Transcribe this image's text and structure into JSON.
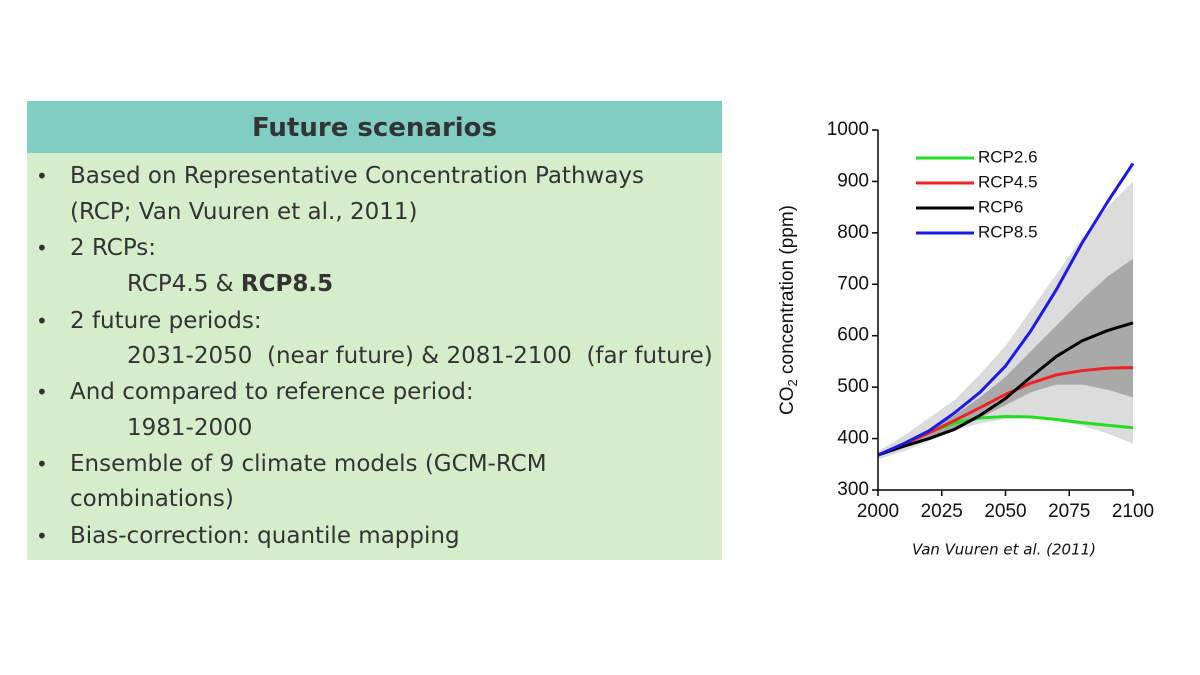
{
  "panel": {
    "title": "Future scenarios",
    "lines": [
      "Based on Representative Concentration Pathways",
      "(RCP; Van Vuuren et al., 2011)",
      "2 RCPs:",
      "RCP4.5 & ",
      "RCP8.5",
      "2 future periods:",
      "2031-2050  (near future) & 2081-2100  (far future)",
      "And compared to reference period:",
      "1981-2000",
      "Ensemble of 9 climate models (GCM-RCM",
      "combinations)",
      "Bias-correction: quantile mapping"
    ]
  },
  "chart_data": {
    "type": "line",
    "ylabel": {
      "main": "CO",
      "sub": "2",
      "rest": " concentration (ppm)"
    },
    "caption": "Van Vuuren et al. (2011)",
    "x": [
      2000,
      2010,
      2020,
      2030,
      2040,
      2050,
      2060,
      2070,
      2080,
      2090,
      2100
    ],
    "xlim": [
      2000,
      2100
    ],
    "xticks": [
      2000,
      2025,
      2050,
      2075,
      2100
    ],
    "ylim": [
      300,
      1000
    ],
    "yticks": [
      300,
      400,
      500,
      600,
      700,
      800,
      900,
      1000
    ],
    "legend": "upper-left",
    "bands": [
      {
        "color": "#dcdcdc",
        "lower": [
          360,
          375,
          395,
          415,
          430,
          438,
          440,
          435,
          425,
          410,
          390
        ],
        "upper": [
          375,
          405,
          440,
          475,
          525,
          580,
          650,
          720,
          790,
          850,
          900
        ]
      },
      {
        "color": "#a9a9a9",
        "lower": [
          365,
          382,
          398,
          415,
          440,
          465,
          490,
          505,
          505,
          495,
          480
        ],
        "upper": [
          370,
          392,
          418,
          445,
          480,
          520,
          570,
          620,
          670,
          715,
          750
        ]
      }
    ],
    "series": [
      {
        "name": "RCP2.6",
        "color": "#22dd22",
        "values": [
          368,
          389,
          412,
          430,
          440,
          443,
          442,
          437,
          431,
          426,
          421
        ]
      },
      {
        "name": "RCP4.5",
        "color": "#ee2222",
        "values": [
          368,
          389,
          411,
          435,
          460,
          486,
          508,
          524,
          532,
          537,
          538
        ]
      },
      {
        "name": "RCP6",
        "color": "#000000",
        "values": [
          368,
          385,
          400,
          418,
          445,
          478,
          520,
          560,
          590,
          610,
          625
        ]
      },
      {
        "name": "RCP8.5",
        "color": "#1a1aee",
        "values": [
          368,
          390,
          415,
          450,
          490,
          541,
          610,
          690,
          780,
          860,
          935
        ]
      }
    ]
  }
}
